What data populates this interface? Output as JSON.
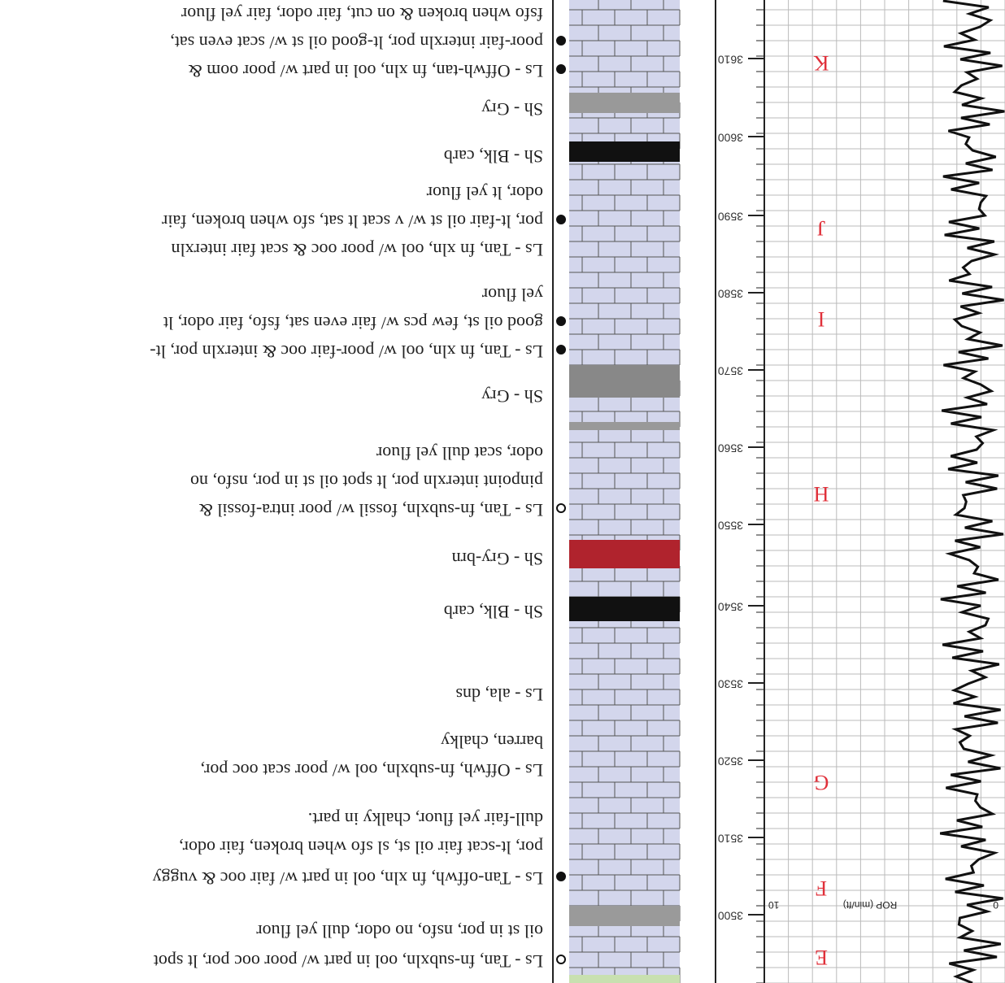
{
  "rop_track": {
    "label": "ROP (min/ft)",
    "min_label": "0",
    "max_label": "10"
  },
  "depths": [
    "3500",
    "3510",
    "3520",
    "3530",
    "3540",
    "3550",
    "3560",
    "3570",
    "3580",
    "3590",
    "3600",
    "3610"
  ],
  "zones": [
    "E",
    "F",
    "G",
    "H",
    "I",
    "J",
    "K"
  ],
  "descriptions": [
    "Ls - Tan, fn-subxln, ool in part w/ poor ooc por, lt spot",
    "oil st in por, nsfo, no odor, dull yel fluor",
    "Ls - Tan-offwh, fn xln, ool in part w/ fair ooc & vuggy",
    "por, lt-scat fair oil st, sl sfo when broken, fair odor,",
    "dull-fair yel fluor, chalky in part.",
    "Ls - Offwh, fn-subxln, ool w/ poor scat ooc por,",
    "barren, chalky",
    "Ls - ala, dns",
    "Sh - Blk, carb",
    "Sh - Gry-brn",
    "Ls - Tan, fn-subxln, fossil w/ poor intra-fossil &",
    "pinpoint interxln por, lt spot oil st in por, nsfo, no",
    "odor, scat dull yel fluor",
    "Sh - Gry",
    "Ls - Tan, fn xln, ool w/ poor-fair ooc & interxln por, lt-",
    "good oil st, few pcs w/ fair even sat, fsfo, fair odor, lt",
    "yel fluor",
    "Ls - Tan, fn xln, ool w/ poor ooc & scat fair interxln",
    "por, lt-fair oil st w/ v scat lt sat, sfo when broken, fair",
    "odor, lt yel fluor",
    "Sh - Blk, carb",
    "Sh - Gry",
    "Ls - Offwh-tan, fn xln, ool in part w/ poor oom &",
    "poor-fair interxln por, lt-good oil st w/ scat even sat,",
    "fsfo when broken & on cut, fair odor, fair yel fluor"
  ]
}
